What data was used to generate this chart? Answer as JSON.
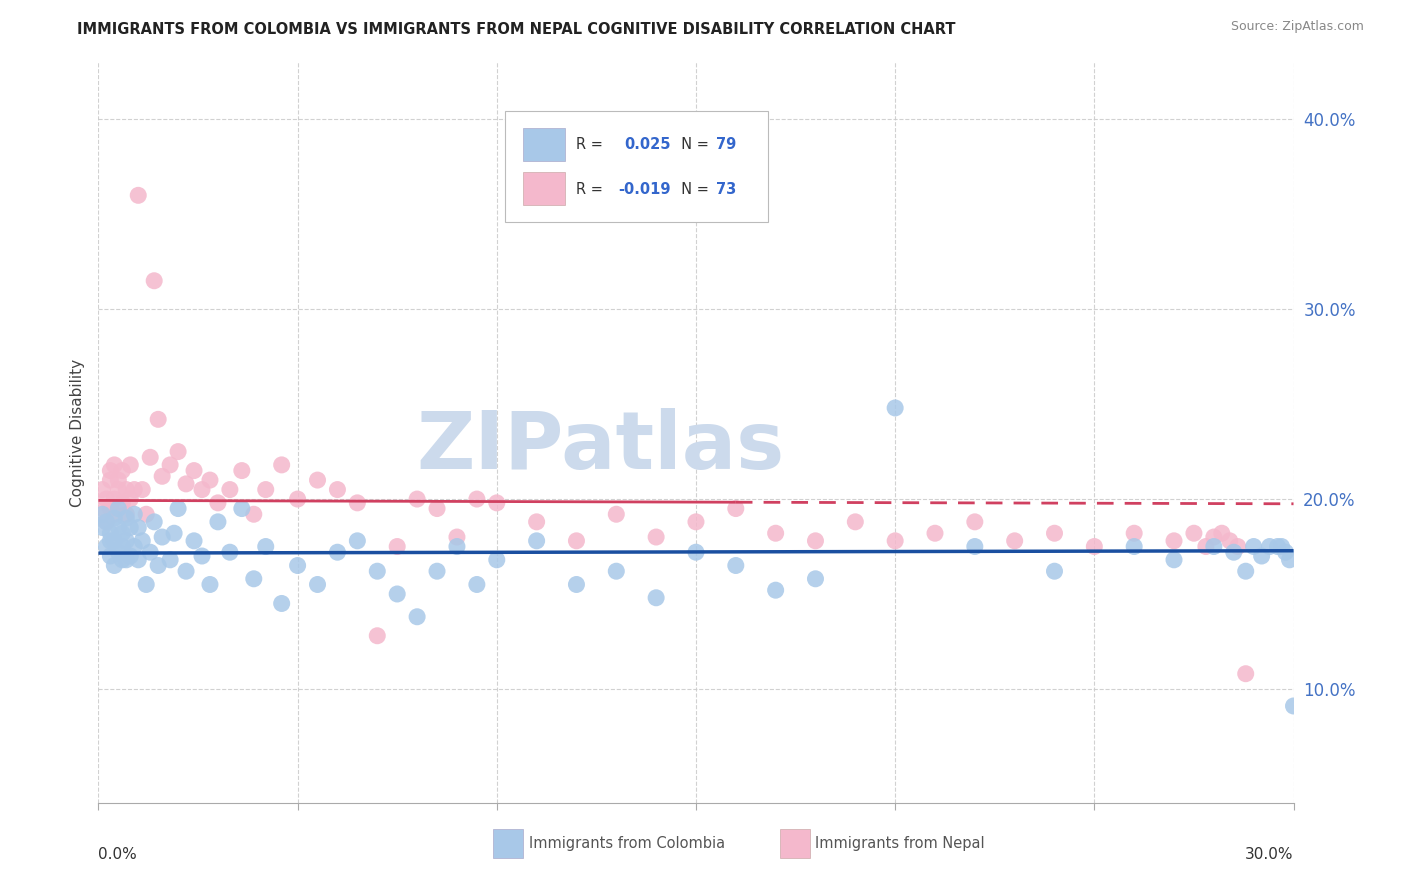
{
  "title": "IMMIGRANTS FROM COLOMBIA VS IMMIGRANTS FROM NEPAL COGNITIVE DISABILITY CORRELATION CHART",
  "source": "Source: ZipAtlas.com",
  "ylabel": "Cognitive Disability",
  "xlim": [
    0.0,
    0.3
  ],
  "ylim": [
    0.04,
    0.43
  ],
  "colombia_color": "#a8c8e8",
  "nepal_color": "#f4b8cc",
  "colombia_edge": "#8ab0d8",
  "nepal_edge": "#e090a8",
  "trend_colombia_color": "#1a4fa0",
  "trend_nepal_color": "#d04060",
  "colombia_R": 0.025,
  "colombia_N": 79,
  "nepal_R": -0.019,
  "nepal_N": 73,
  "legend_color": "#3366cc",
  "watermark": "ZIPatlas",
  "watermark_color": "#ccdaec",
  "background_color": "#ffffff",
  "grid_color": "#cccccc",
  "ytick_color": "#4472c4",
  "colombia_x": [
    0.001,
    0.001,
    0.002,
    0.002,
    0.003,
    0.003,
    0.003,
    0.004,
    0.004,
    0.004,
    0.005,
    0.005,
    0.005,
    0.006,
    0.006,
    0.006,
    0.007,
    0.007,
    0.007,
    0.008,
    0.008,
    0.009,
    0.009,
    0.01,
    0.01,
    0.011,
    0.012,
    0.013,
    0.014,
    0.015,
    0.016,
    0.018,
    0.019,
    0.02,
    0.022,
    0.024,
    0.026,
    0.028,
    0.03,
    0.033,
    0.036,
    0.039,
    0.042,
    0.046,
    0.05,
    0.055,
    0.06,
    0.065,
    0.07,
    0.075,
    0.08,
    0.085,
    0.09,
    0.095,
    0.1,
    0.11,
    0.12,
    0.13,
    0.14,
    0.15,
    0.16,
    0.17,
    0.18,
    0.2,
    0.22,
    0.24,
    0.26,
    0.27,
    0.28,
    0.285,
    0.288,
    0.29,
    0.292,
    0.294,
    0.296,
    0.297,
    0.298,
    0.299,
    0.3
  ],
  "colombia_y": [
    0.185,
    0.192,
    0.175,
    0.188,
    0.182,
    0.17,
    0.178,
    0.19,
    0.165,
    0.178,
    0.195,
    0.172,
    0.185,
    0.168,
    0.182,
    0.175,
    0.19,
    0.168,
    0.178,
    0.185,
    0.17,
    0.192,
    0.175,
    0.185,
    0.168,
    0.178,
    0.155,
    0.172,
    0.188,
    0.165,
    0.18,
    0.168,
    0.182,
    0.195,
    0.162,
    0.178,
    0.17,
    0.155,
    0.188,
    0.172,
    0.195,
    0.158,
    0.175,
    0.145,
    0.165,
    0.155,
    0.172,
    0.178,
    0.162,
    0.15,
    0.138,
    0.162,
    0.175,
    0.155,
    0.168,
    0.178,
    0.155,
    0.162,
    0.148,
    0.172,
    0.165,
    0.152,
    0.158,
    0.248,
    0.175,
    0.162,
    0.175,
    0.168,
    0.175,
    0.172,
    0.162,
    0.175,
    0.17,
    0.175,
    0.175,
    0.175,
    0.172,
    0.168,
    0.091
  ],
  "nepal_x": [
    0.001,
    0.001,
    0.002,
    0.002,
    0.003,
    0.003,
    0.003,
    0.004,
    0.004,
    0.004,
    0.005,
    0.005,
    0.006,
    0.006,
    0.007,
    0.007,
    0.008,
    0.008,
    0.009,
    0.01,
    0.011,
    0.012,
    0.013,
    0.014,
    0.015,
    0.016,
    0.018,
    0.02,
    0.022,
    0.024,
    0.026,
    0.028,
    0.03,
    0.033,
    0.036,
    0.039,
    0.042,
    0.046,
    0.05,
    0.055,
    0.06,
    0.065,
    0.07,
    0.075,
    0.08,
    0.085,
    0.09,
    0.095,
    0.1,
    0.11,
    0.12,
    0.13,
    0.14,
    0.15,
    0.16,
    0.17,
    0.18,
    0.19,
    0.2,
    0.21,
    0.22,
    0.23,
    0.24,
    0.25,
    0.26,
    0.27,
    0.275,
    0.278,
    0.28,
    0.282,
    0.284,
    0.286,
    0.288
  ],
  "nepal_y": [
    0.195,
    0.205,
    0.188,
    0.2,
    0.215,
    0.195,
    0.21,
    0.2,
    0.218,
    0.192,
    0.21,
    0.205,
    0.198,
    0.215,
    0.205,
    0.192,
    0.218,
    0.2,
    0.205,
    0.36,
    0.205,
    0.192,
    0.222,
    0.315,
    0.242,
    0.212,
    0.218,
    0.225,
    0.208,
    0.215,
    0.205,
    0.21,
    0.198,
    0.205,
    0.215,
    0.192,
    0.205,
    0.218,
    0.2,
    0.21,
    0.205,
    0.198,
    0.128,
    0.175,
    0.2,
    0.195,
    0.18,
    0.2,
    0.198,
    0.188,
    0.178,
    0.192,
    0.18,
    0.188,
    0.195,
    0.182,
    0.178,
    0.188,
    0.178,
    0.182,
    0.188,
    0.178,
    0.182,
    0.175,
    0.182,
    0.178,
    0.182,
    0.175,
    0.18,
    0.182,
    0.178,
    0.175,
    0.108
  ]
}
